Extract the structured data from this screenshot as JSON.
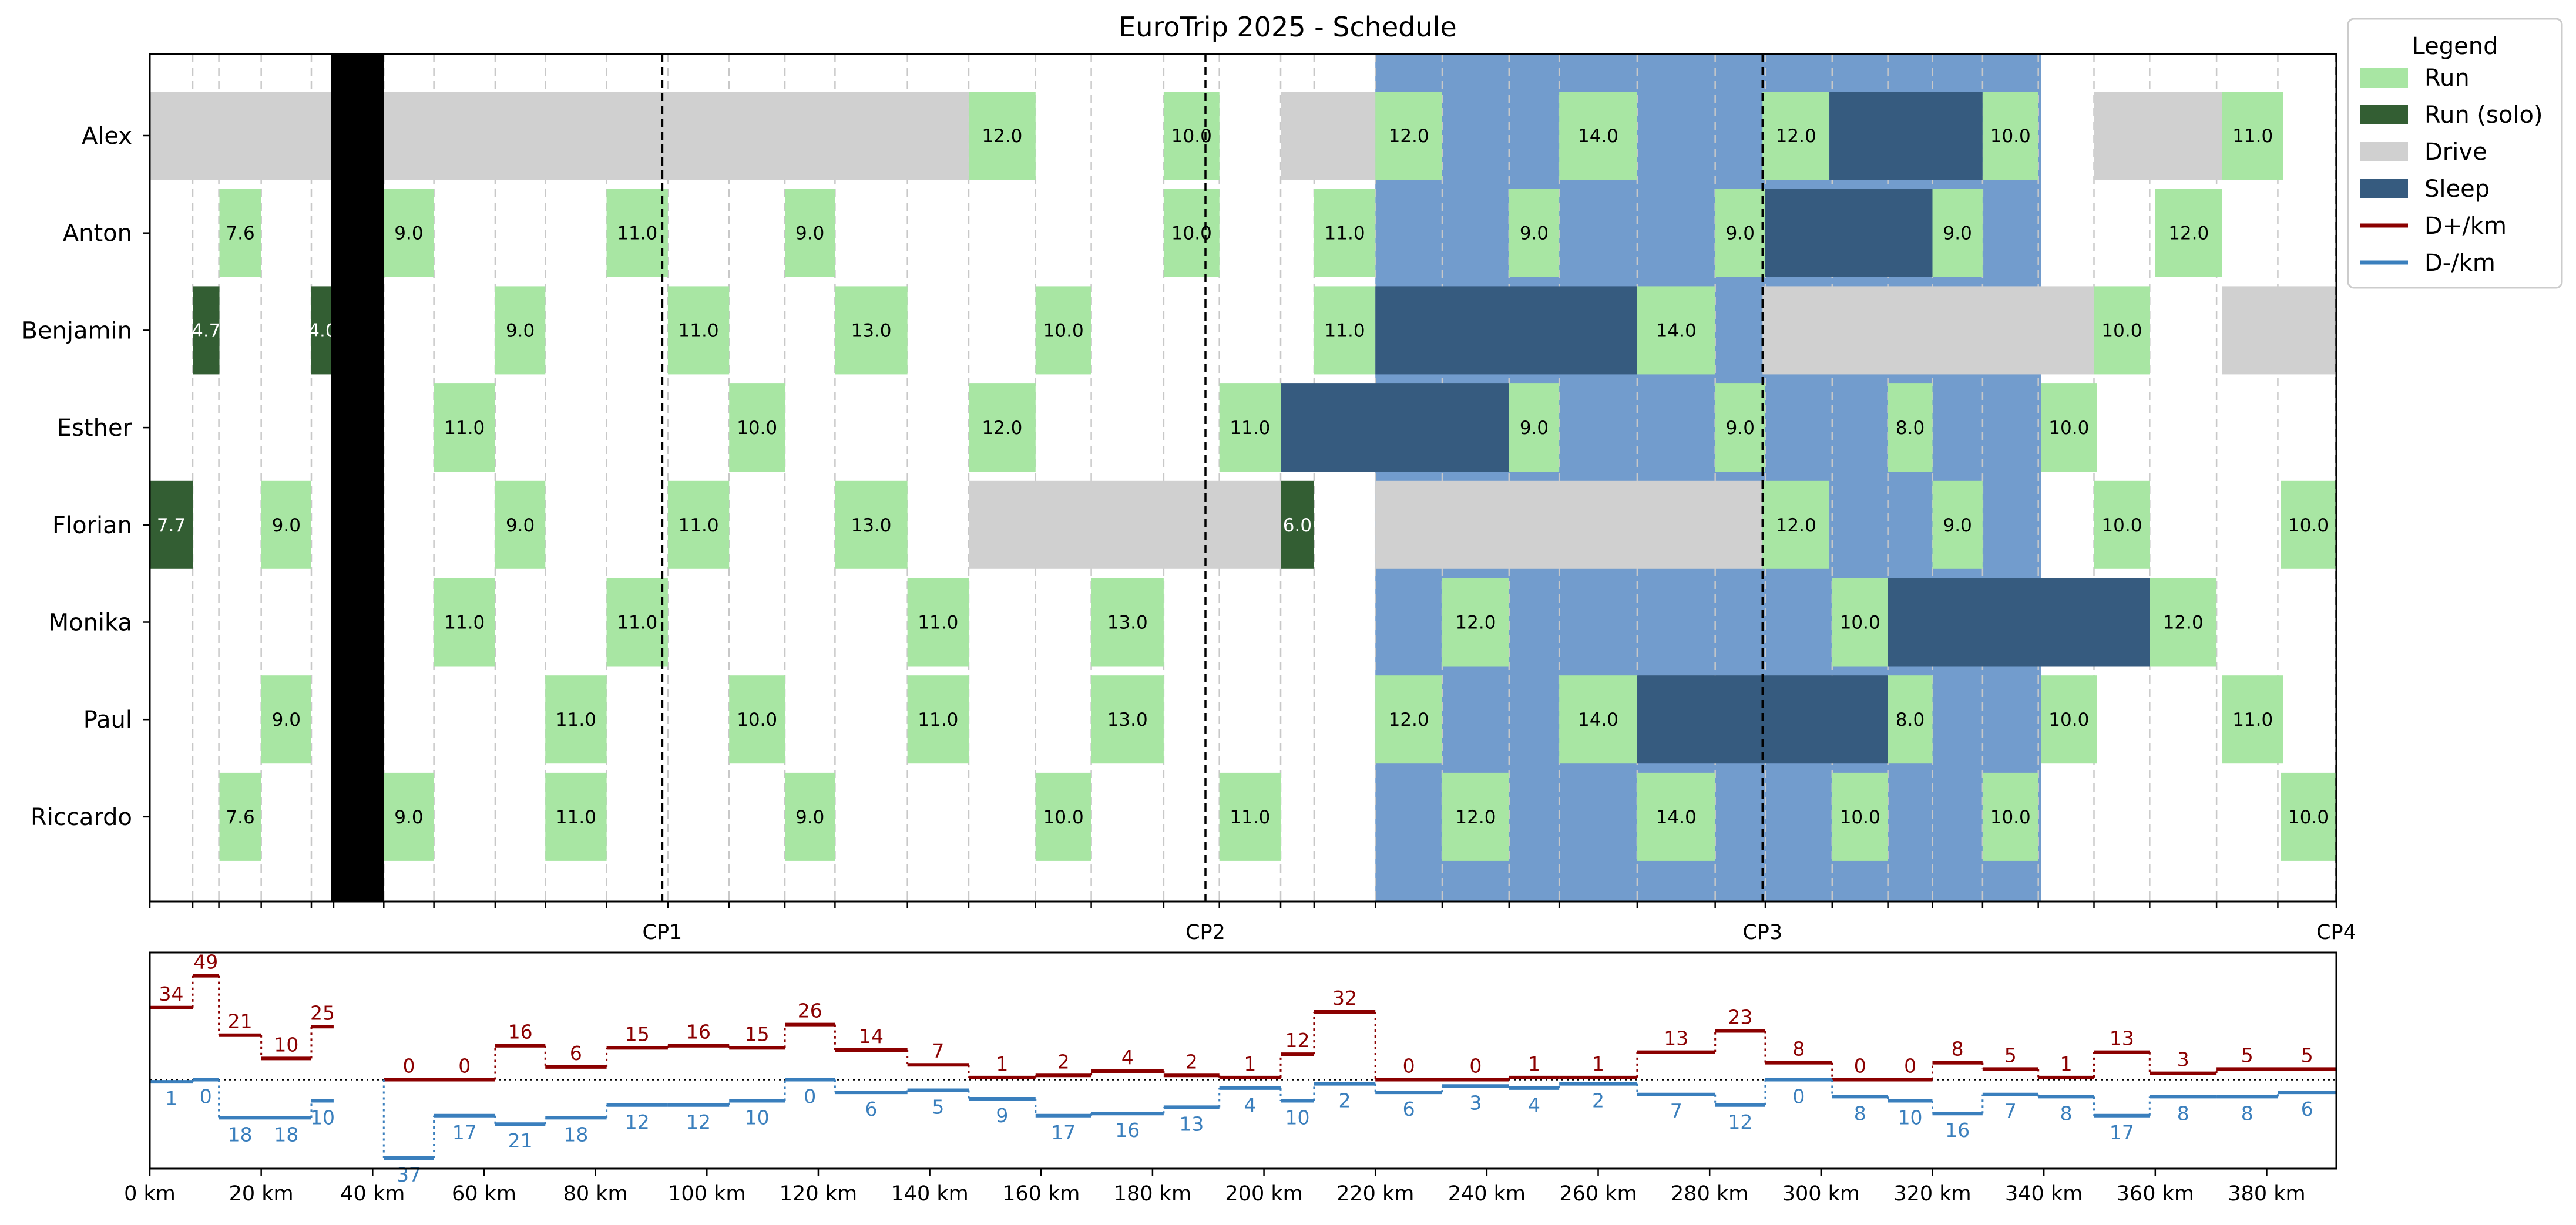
{
  "chart_data": [
    {
      "type": "gantt",
      "title": "EuroTrip 2025 - Schedule",
      "xlim_km": [
        0,
        392.5
      ],
      "x_unit": "km",
      "grid": "vertical dashed at leg boundaries",
      "checkpoints": [
        {
          "label": "CP1",
          "km": 92
        },
        {
          "label": "CP2",
          "km": 189.5
        },
        {
          "label": "CP3",
          "km": 289.5
        },
        {
          "label": "CP4",
          "km": 392.5
        }
      ],
      "night_shading": [
        {
          "start_km": 220,
          "end_km": 339.5,
          "color": "#729ccd"
        }
      ],
      "blackout_block": {
        "start_km": 32.5,
        "end_km": 42,
        "color": "#000000"
      },
      "rows": [
        "Alex",
        "Anton",
        "Benjamin",
        "Esther",
        "Florian",
        "Monika",
        "Paul",
        "Riccardo"
      ],
      "tasks": [
        {
          "row": "Alex",
          "type": "Drive",
          "start": 0,
          "end": 147
        },
        {
          "row": "Alex",
          "type": "Run",
          "start": 147,
          "end": 159,
          "label": "12.0"
        },
        {
          "row": "Alex",
          "type": "Run",
          "start": 182,
          "end": 192,
          "label": "10.0"
        },
        {
          "row": "Alex",
          "type": "Drive",
          "start": 203,
          "end": 220
        },
        {
          "row": "Alex",
          "type": "Run",
          "start": 220,
          "end": 232,
          "label": "12.0"
        },
        {
          "row": "Alex",
          "type": "Run",
          "start": 253,
          "end": 267,
          "label": "14.0"
        },
        {
          "row": "Alex",
          "type": "Run",
          "start": 289.5,
          "end": 301.5,
          "label": "12.0"
        },
        {
          "row": "Alex",
          "type": "Sleep",
          "start": 301.5,
          "end": 329
        },
        {
          "row": "Alex",
          "type": "Run",
          "start": 329,
          "end": 339,
          "label": "10.0"
        },
        {
          "row": "Alex",
          "type": "Drive",
          "start": 349,
          "end": 372
        },
        {
          "row": "Alex",
          "type": "Run",
          "start": 372,
          "end": 383,
          "label": "11.0"
        },
        {
          "row": "Anton",
          "type": "Run",
          "start": 12.5,
          "end": 20,
          "label": "7.6"
        },
        {
          "row": "Anton",
          "type": "Run",
          "start": 42,
          "end": 51,
          "label": "9.0"
        },
        {
          "row": "Anton",
          "type": "Run",
          "start": 82,
          "end": 93,
          "label": "11.0"
        },
        {
          "row": "Anton",
          "type": "Run",
          "start": 114,
          "end": 123,
          "label": "9.0"
        },
        {
          "row": "Anton",
          "type": "Run",
          "start": 182,
          "end": 192,
          "label": "10.0"
        },
        {
          "row": "Anton",
          "type": "Run",
          "start": 209,
          "end": 220,
          "label": "11.0"
        },
        {
          "row": "Anton",
          "type": "Run",
          "start": 244,
          "end": 253,
          "label": "9.0"
        },
        {
          "row": "Anton",
          "type": "Run",
          "start": 281,
          "end": 290,
          "label": "9.0"
        },
        {
          "row": "Anton",
          "type": "Sleep",
          "start": 290,
          "end": 320
        },
        {
          "row": "Anton",
          "type": "Run",
          "start": 320,
          "end": 329,
          "label": "9.0"
        },
        {
          "row": "Anton",
          "type": "Run",
          "start": 360,
          "end": 372,
          "label": "12.0"
        },
        {
          "row": "Benjamin",
          "type": "Run (solo)",
          "start": 7.7,
          "end": 12.5,
          "label": "4.7"
        },
        {
          "row": "Benjamin",
          "type": "Run (solo)",
          "start": 29,
          "end": 33,
          "label": "4.0"
        },
        {
          "row": "Benjamin",
          "type": "Run",
          "start": 62,
          "end": 71,
          "label": "9.0"
        },
        {
          "row": "Benjamin",
          "type": "Run",
          "start": 93,
          "end": 104,
          "label": "11.0"
        },
        {
          "row": "Benjamin",
          "type": "Run",
          "start": 123,
          "end": 136,
          "label": "13.0"
        },
        {
          "row": "Benjamin",
          "type": "Run",
          "start": 159,
          "end": 169,
          "label": "10.0"
        },
        {
          "row": "Benjamin",
          "type": "Run",
          "start": 209,
          "end": 220,
          "label": "11.0"
        },
        {
          "row": "Benjamin",
          "type": "Sleep",
          "start": 220,
          "end": 267
        },
        {
          "row": "Benjamin",
          "type": "Run",
          "start": 267,
          "end": 281,
          "label": "14.0"
        },
        {
          "row": "Benjamin",
          "type": "Drive",
          "start": 289.5,
          "end": 349
        },
        {
          "row": "Benjamin",
          "type": "Run",
          "start": 349,
          "end": 359,
          "label": "10.0"
        },
        {
          "row": "Benjamin",
          "type": "Drive",
          "start": 372,
          "end": 392.5
        },
        {
          "row": "Esther",
          "type": "Run",
          "start": 51,
          "end": 62,
          "label": "11.0"
        },
        {
          "row": "Esther",
          "type": "Run",
          "start": 104,
          "end": 114,
          "label": "10.0"
        },
        {
          "row": "Esther",
          "type": "Run",
          "start": 147,
          "end": 159,
          "label": "12.0"
        },
        {
          "row": "Esther",
          "type": "Run",
          "start": 192,
          "end": 203,
          "label": "11.0"
        },
        {
          "row": "Esther",
          "type": "Sleep",
          "start": 203,
          "end": 244
        },
        {
          "row": "Esther",
          "type": "Run",
          "start": 244,
          "end": 253,
          "label": "9.0"
        },
        {
          "row": "Esther",
          "type": "Run",
          "start": 281,
          "end": 290,
          "label": "9.0"
        },
        {
          "row": "Esther",
          "type": "Run",
          "start": 312,
          "end": 320,
          "label": "8.0"
        },
        {
          "row": "Esther",
          "type": "Run",
          "start": 339.5,
          "end": 349.5,
          "label": "10.0"
        },
        {
          "row": "Florian",
          "type": "Run (solo)",
          "start": 0,
          "end": 7.7,
          "label": "7.7"
        },
        {
          "row": "Florian",
          "type": "Run",
          "start": 20,
          "end": 29,
          "label": "9.0"
        },
        {
          "row": "Florian",
          "type": "Run",
          "start": 62,
          "end": 71,
          "label": "9.0"
        },
        {
          "row": "Florian",
          "type": "Run",
          "start": 93,
          "end": 104,
          "label": "11.0"
        },
        {
          "row": "Florian",
          "type": "Run",
          "start": 123,
          "end": 136,
          "label": "13.0"
        },
        {
          "row": "Florian",
          "type": "Drive",
          "start": 147,
          "end": 203
        },
        {
          "row": "Florian",
          "type": "Run (solo)",
          "start": 203,
          "end": 209,
          "label": "6.0"
        },
        {
          "row": "Florian",
          "type": "Drive",
          "start": 220,
          "end": 289.5
        },
        {
          "row": "Florian",
          "type": "Run",
          "start": 289.5,
          "end": 301.5,
          "label": "12.0"
        },
        {
          "row": "Florian",
          "type": "Run",
          "start": 320,
          "end": 329,
          "label": "9.0"
        },
        {
          "row": "Florian",
          "type": "Run",
          "start": 349,
          "end": 359,
          "label": "10.0"
        },
        {
          "row": "Florian",
          "type": "Run",
          "start": 382.5,
          "end": 392.5,
          "label": "10.0"
        },
        {
          "row": "Monika",
          "type": "Run",
          "start": 51,
          "end": 62,
          "label": "11.0"
        },
        {
          "row": "Monika",
          "type": "Run",
          "start": 82,
          "end": 93,
          "label": "11.0"
        },
        {
          "row": "Monika",
          "type": "Run",
          "start": 136,
          "end": 147,
          "label": "11.0"
        },
        {
          "row": "Monika",
          "type": "Run",
          "start": 169,
          "end": 182,
          "label": "13.0"
        },
        {
          "row": "Monika",
          "type": "Run",
          "start": 232,
          "end": 244,
          "label": "12.0"
        },
        {
          "row": "Monika",
          "type": "Run",
          "start": 302,
          "end": 312,
          "label": "10.0"
        },
        {
          "row": "Monika",
          "type": "Sleep",
          "start": 312,
          "end": 359
        },
        {
          "row": "Monika",
          "type": "Run",
          "start": 359,
          "end": 371,
          "label": "12.0"
        },
        {
          "row": "Paul",
          "type": "Run",
          "start": 20,
          "end": 29,
          "label": "9.0"
        },
        {
          "row": "Paul",
          "type": "Run",
          "start": 71,
          "end": 82,
          "label": "11.0"
        },
        {
          "row": "Paul",
          "type": "Run",
          "start": 104,
          "end": 114,
          "label": "10.0"
        },
        {
          "row": "Paul",
          "type": "Run",
          "start": 136,
          "end": 147,
          "label": "11.0"
        },
        {
          "row": "Paul",
          "type": "Run",
          "start": 169,
          "end": 182,
          "label": "13.0"
        },
        {
          "row": "Paul",
          "type": "Run",
          "start": 220,
          "end": 232,
          "label": "12.0"
        },
        {
          "row": "Paul",
          "type": "Run",
          "start": 253,
          "end": 267,
          "label": "14.0"
        },
        {
          "row": "Paul",
          "type": "Sleep",
          "start": 267,
          "end": 312
        },
        {
          "row": "Paul",
          "type": "Run",
          "start": 312,
          "end": 320,
          "label": "8.0"
        },
        {
          "row": "Paul",
          "type": "Run",
          "start": 339.5,
          "end": 349.5,
          "label": "10.0"
        },
        {
          "row": "Paul",
          "type": "Run",
          "start": 372,
          "end": 383,
          "label": "11.0"
        },
        {
          "row": "Riccardo",
          "type": "Run",
          "start": 12.5,
          "end": 20,
          "label": "7.6"
        },
        {
          "row": "Riccardo",
          "type": "Run",
          "start": 42,
          "end": 51,
          "label": "9.0"
        },
        {
          "row": "Riccardo",
          "type": "Run",
          "start": 71,
          "end": 82,
          "label": "11.0"
        },
        {
          "row": "Riccardo",
          "type": "Run",
          "start": 114,
          "end": 123,
          "label": "9.0"
        },
        {
          "row": "Riccardo",
          "type": "Run",
          "start": 159,
          "end": 169,
          "label": "10.0"
        },
        {
          "row": "Riccardo",
          "type": "Run",
          "start": 192,
          "end": 203,
          "label": "11.0"
        },
        {
          "row": "Riccardo",
          "type": "Run",
          "start": 232,
          "end": 244,
          "label": "12.0"
        },
        {
          "row": "Riccardo",
          "type": "Run",
          "start": 267,
          "end": 281,
          "label": "14.0"
        },
        {
          "row": "Riccardo",
          "type": "Run",
          "start": 302,
          "end": 312,
          "label": "10.0"
        },
        {
          "row": "Riccardo",
          "type": "Run",
          "start": 329,
          "end": 339,
          "label": "10.0"
        },
        {
          "row": "Riccardo",
          "type": "Run",
          "start": 382.5,
          "end": 392.5,
          "label": "10.0"
        }
      ],
      "legend": {
        "title": "Legend",
        "placement": "outside-top-right",
        "items": [
          {
            "label": "Run",
            "kind": "patch",
            "color": "#a8e6a3"
          },
          {
            "label": "Run (solo)",
            "kind": "patch",
            "color": "#335e33"
          },
          {
            "label": "Drive",
            "kind": "patch",
            "color": "#d0d0d0"
          },
          {
            "label": "Sleep",
            "kind": "patch",
            "color": "#365b7f"
          },
          {
            "label": "D+/km",
            "kind": "line",
            "color": "#8b0000"
          },
          {
            "label": "D-/km",
            "kind": "line",
            "color": "#3a7fbd"
          }
        ]
      },
      "colors": {
        "Run": "#a8e6a3",
        "Run (solo)": "#335e33",
        "Drive": "#d0d0d0",
        "Sleep": "#365b7f",
        "night": "#729ccd",
        "grid": "#c8c8c8",
        "checkpoint_line": "#000000"
      }
    },
    {
      "type": "step",
      "xlabel": "",
      "x_unit": "km",
      "xlim": [
        0,
        392.5
      ],
      "xticks": [
        0,
        20,
        40,
        60,
        80,
        100,
        120,
        140,
        160,
        180,
        200,
        220,
        240,
        260,
        280,
        300,
        320,
        340,
        360,
        380
      ],
      "xtick_labels": [
        "0 km",
        "20 km",
        "40 km",
        "60 km",
        "80 km",
        "100 km",
        "120 km",
        "140 km",
        "160 km",
        "180 km",
        "200 km",
        "220 km",
        "240 km",
        "260 km",
        "280 km",
        "300 km",
        "320 km",
        "340 km",
        "360 km",
        "380 km"
      ],
      "ylim": [
        -42,
        60
      ],
      "zero_line": "dotted",
      "segments": [
        {
          "start": 0,
          "end": 7.7,
          "d_plus": 34,
          "d_minus": 1
        },
        {
          "start": 7.7,
          "end": 12.4,
          "d_plus": 49,
          "d_minus": 0
        },
        {
          "start": 12.4,
          "end": 20,
          "d_plus": 21,
          "d_minus": 18
        },
        {
          "start": 20,
          "end": 29,
          "d_plus": 10,
          "d_minus": 18
        },
        {
          "start": 29,
          "end": 33,
          "d_plus": 25,
          "d_minus": 10
        },
        {
          "start": 42,
          "end": 51,
          "d_plus": 0,
          "d_minus": 37
        },
        {
          "start": 51,
          "end": 62,
          "d_plus": 0,
          "d_minus": 17
        },
        {
          "start": 62,
          "end": 71,
          "d_plus": 16,
          "d_minus": 21
        },
        {
          "start": 71,
          "end": 82,
          "d_plus": 6,
          "d_minus": 18
        },
        {
          "start": 82,
          "end": 93,
          "d_plus": 15,
          "d_minus": 12
        },
        {
          "start": 93,
          "end": 104,
          "d_plus": 16,
          "d_minus": 12
        },
        {
          "start": 104,
          "end": 114,
          "d_plus": 15,
          "d_minus": 10
        },
        {
          "start": 114,
          "end": 123,
          "d_plus": 26,
          "d_minus": 0
        },
        {
          "start": 123,
          "end": 136,
          "d_plus": 14,
          "d_minus": 6
        },
        {
          "start": 136,
          "end": 147,
          "d_plus": 7,
          "d_minus": 5
        },
        {
          "start": 147,
          "end": 159,
          "d_plus": 1,
          "d_minus": 9
        },
        {
          "start": 159,
          "end": 169,
          "d_plus": 2,
          "d_minus": 17
        },
        {
          "start": 169,
          "end": 182,
          "d_plus": 4,
          "d_minus": 16
        },
        {
          "start": 182,
          "end": 192,
          "d_plus": 2,
          "d_minus": 13
        },
        {
          "start": 192,
          "end": 203,
          "d_plus": 1,
          "d_minus": 4
        },
        {
          "start": 203,
          "end": 209,
          "d_plus": 12,
          "d_minus": 10
        },
        {
          "start": 209,
          "end": 220,
          "d_plus": 32,
          "d_minus": 2
        },
        {
          "start": 220,
          "end": 232,
          "d_plus": 0,
          "d_minus": 6
        },
        {
          "start": 232,
          "end": 244,
          "d_plus": 0,
          "d_minus": 3
        },
        {
          "start": 244,
          "end": 253,
          "d_plus": 1,
          "d_minus": 4
        },
        {
          "start": 253,
          "end": 267,
          "d_plus": 1,
          "d_minus": 2
        },
        {
          "start": 267,
          "end": 281,
          "d_plus": 13,
          "d_minus": 7
        },
        {
          "start": 281,
          "end": 290,
          "d_plus": 23,
          "d_minus": 12
        },
        {
          "start": 290,
          "end": 302,
          "d_plus": 8,
          "d_minus": 0
        },
        {
          "start": 302,
          "end": 312,
          "d_plus": 0,
          "d_minus": 8
        },
        {
          "start": 312,
          "end": 320,
          "d_plus": 0,
          "d_minus": 10
        },
        {
          "start": 320,
          "end": 329,
          "d_plus": 8,
          "d_minus": 16
        },
        {
          "start": 329,
          "end": 339,
          "d_plus": 5,
          "d_minus": 7
        },
        {
          "start": 339,
          "end": 349,
          "d_plus": 1,
          "d_minus": 8
        },
        {
          "start": 349,
          "end": 359,
          "d_plus": 13,
          "d_minus": 17
        },
        {
          "start": 359,
          "end": 371,
          "d_plus": 3,
          "d_minus": 8
        },
        {
          "start": 371,
          "end": 382,
          "d_plus": 5,
          "d_minus": 8
        },
        {
          "start": 382,
          "end": 392.5,
          "d_plus": 5,
          "d_minus": 6
        }
      ]
    }
  ]
}
